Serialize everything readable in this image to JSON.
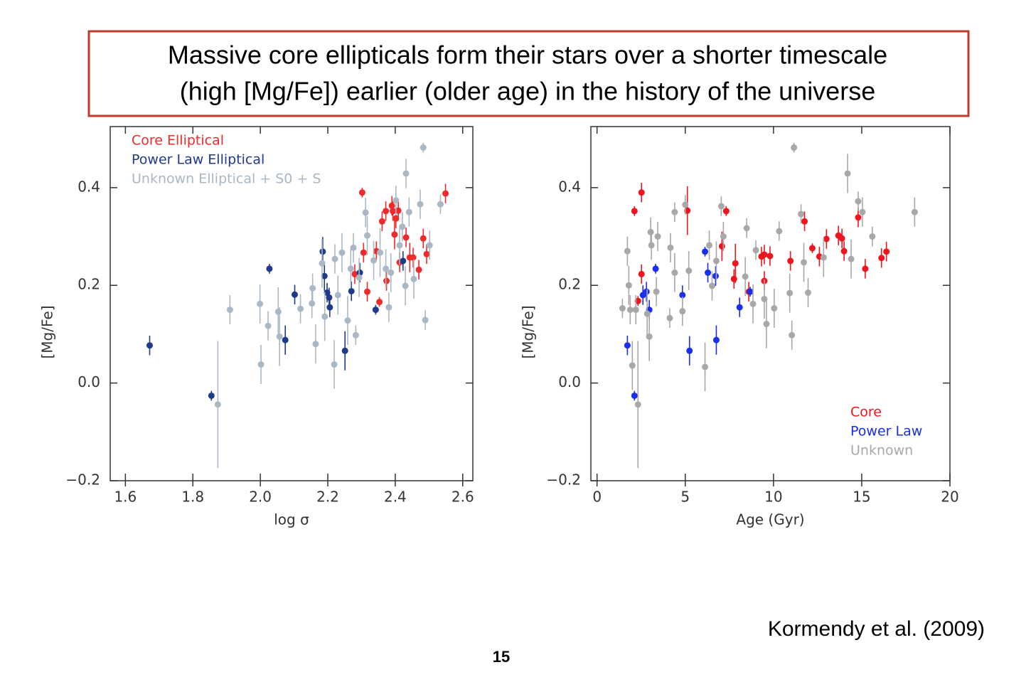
{
  "title_lines": [
    "Massive core ellipticals form their stars over a shorter timescale",
    "(high [Mg/Fe]) earlier (older age) in the history of the universe"
  ],
  "citation": "Kormendy et al. (2009)",
  "page_number": 15,
  "chart_data": [
    {
      "type": "scatter",
      "xlabel": "log σ",
      "ylabel": "[Mg/Fe]",
      "xlim": [
        1.555,
        2.63
      ],
      "ylim": [
        -0.2,
        0.525
      ],
      "xticks": [
        1.6,
        1.8,
        {
          "value": 2,
          "label": "2.0"
        },
        2.2,
        2.4,
        2.6
      ],
      "yticks": [
        {
          "value": -0.2,
          "label": "−0.2"
        },
        {
          "value": 0,
          "label": "0.0"
        },
        0.2,
        0.4
      ],
      "legend": "upper left",
      "series": [
        {
          "name": "Core Elliptical",
          "color": "#f02a2a",
          "x": [
            2.302,
            2.317,
            2.306,
            2.344,
            2.28,
            2.353,
            2.361,
            2.372,
            2.374,
            2.393,
            2.398,
            2.402,
            2.409,
            2.413,
            2.432,
            2.443,
            2.453,
            2.47,
            2.483,
            2.493,
            2.549,
            2.39
          ],
          "values": [
            0.39,
            0.187,
            0.267,
            0.27,
            0.223,
            0.166,
            0.331,
            0.352,
            0.209,
            0.352,
            0.304,
            0.337,
            0.353,
            0.247,
            0.298,
            0.257,
            0.257,
            0.232,
            0.296,
            0.264,
            0.388,
            0.363
          ],
          "yerr": [
            0.01,
            0.02,
            0.02,
            0.02,
            0.02,
            0.01,
            0.02,
            0.02,
            0.02,
            0.02,
            0.03,
            0.02,
            0.02,
            0.02,
            0.02,
            0.03,
            0.02,
            0.02,
            0.02,
            0.02,
            0.02,
            0.02
          ]
        },
        {
          "name": "Power Law Elliptical",
          "color": "#1f3a8a",
          "x": [
            1.672,
            1.855,
            2.027,
            2.074,
            2.102,
            2.185,
            2.19,
            2.198,
            2.204,
            2.206,
            2.251,
            2.27,
            2.295,
            2.342,
            2.423
          ],
          "values": [
            0.077,
            -0.026,
            0.234,
            0.088,
            0.181,
            0.269,
            0.219,
            0.185,
            0.175,
            0.155,
            0.066,
            0.188,
            0.226,
            0.15,
            0.25
          ],
          "yerr": [
            0.02,
            0.01,
            0.01,
            0.03,
            0.02,
            0.03,
            0.03,
            0.02,
            0.02,
            0.02,
            0.04,
            0.02,
            0.02,
            0.01,
            0.02
          ]
        },
        {
          "name": "Unknown Elliptical + S0 + S",
          "color": "#a9b8c4",
          "x": [
            1.874,
            1.91,
            1.999,
            2.002,
            2.023,
            2.053,
            2.057,
            2.119,
            2.153,
            2.155,
            2.164,
            2.183,
            2.191,
            2.219,
            2.221,
            2.23,
            2.242,
            2.259,
            2.268,
            2.276,
            2.283,
            2.293,
            2.312,
            2.317,
            2.336,
            2.355,
            2.372,
            2.381,
            2.387,
            2.402,
            2.413,
            2.421,
            2.43,
            2.432,
            2.441,
            2.455,
            2.474,
            2.483,
            2.489,
            2.502,
            2.534
          ],
          "values": [
            -0.044,
            0.15,
            0.162,
            0.038,
            0.117,
            0.146,
            0.095,
            0.152,
            0.163,
            0.194,
            0.08,
            0.245,
            0.136,
            0.038,
            0.254,
            0.18,
            0.267,
            0.128,
            0.234,
            0.277,
            0.098,
            0.216,
            0.349,
            0.302,
            0.251,
            0.267,
            0.234,
            0.155,
            0.226,
            0.374,
            0.282,
            0.32,
            0.199,
            0.429,
            0.35,
            0.213,
            0.366,
            0.482,
            0.129,
            0.282,
            0.366
          ],
          "yerr": [
            0.13,
            0.03,
            0.04,
            0.04,
            0.03,
            0.05,
            0.06,
            0.03,
            0.03,
            0.03,
            0.04,
            0.05,
            0.05,
            0.05,
            0.03,
            0.04,
            0.04,
            0.05,
            0.04,
            0.03,
            0.02,
            0.04,
            0.03,
            0.04,
            0.04,
            0.05,
            0.04,
            0.03,
            0.04,
            0.03,
            0.04,
            0.03,
            0.04,
            0.03,
            0.03,
            0.04,
            0.03,
            0.01,
            0.02,
            0.03,
            0.02
          ]
        }
      ]
    },
    {
      "type": "scatter",
      "xlabel": "Age  (Gyr)",
      "ylabel": "[Mg/Fe]",
      "xlim": [
        -0.35,
        20
      ],
      "ylim": [
        -0.2,
        0.525
      ],
      "xticks": [
        0,
        5,
        10,
        15,
        20
      ],
      "yticks": [
        {
          "value": -0.2,
          "label": "−0.2"
        },
        {
          "value": 0,
          "label": "0.0"
        },
        0.2,
        0.4
      ],
      "legend": "lower right",
      "series": [
        {
          "name": "Core",
          "color": "#f0141e",
          "x": [
            2.12,
            2.52,
            2.52,
            2.32,
            5.12,
            7.08,
            7.32,
            7.76,
            7.84,
            8.6,
            9.32,
            9.48,
            9.48,
            9.8,
            10.96,
            11.76,
            12.2,
            12.6,
            13.0,
            13.68,
            13.88,
            14.0,
            14.8,
            15.2,
            16.12,
            16.4
          ],
          "values": [
            0.352,
            0.39,
            0.223,
            0.168,
            0.353,
            0.28,
            0.352,
            0.213,
            0.245,
            0.187,
            0.259,
            0.209,
            0.263,
            0.26,
            0.25,
            0.331,
            0.276,
            0.259,
            0.295,
            0.302,
            0.296,
            0.27,
            0.339,
            0.234,
            0.256,
            0.269
          ],
          "yerr": [
            0.01,
            0.02,
            0.02,
            0.01,
            0.05,
            0.03,
            0.01,
            0.02,
            0.04,
            0.02,
            0.02,
            0.02,
            0.02,
            0.02,
            0.02,
            0.02,
            0.01,
            0.02,
            0.02,
            0.02,
            0.02,
            0.02,
            0.02,
            0.02,
            0.02,
            0.02
          ]
        },
        {
          "name": "Power Law",
          "color": "#1a2ef0",
          "x": [
            1.72,
            2.12,
            2.6,
            2.8,
            2.96,
            3.32,
            4.84,
            5.24,
            6.12,
            6.28,
            6.72,
            6.76,
            8.08,
            8.68
          ],
          "values": [
            0.077,
            -0.026,
            0.18,
            0.187,
            0.15,
            0.234,
            0.18,
            0.066,
            0.269,
            0.226,
            0.219,
            0.088,
            0.155,
            0.187
          ],
          "yerr": [
            0.02,
            0.01,
            0.02,
            0.02,
            0.02,
            0.01,
            0.02,
            0.03,
            0.01,
            0.02,
            0.02,
            0.03,
            0.02,
            0.01
          ]
        },
        {
          "name": "Unknown",
          "color": "#a8a8a8",
          "x": [
            1.44,
            1.72,
            1.8,
            1.88,
            2.0,
            2.32,
            2.2,
            2.84,
            2.96,
            3.04,
            3.08,
            3.36,
            3.44,
            4.12,
            4.16,
            4.4,
            4.4,
            4.84,
            5.0,
            5.2,
            6.12,
            6.36,
            6.52,
            6.76,
            7.04,
            7.16,
            8.48,
            8.4,
            8.84,
            9.0,
            9.48,
            9.6,
            10.04,
            10.32,
            10.92,
            11.04,
            11.16,
            11.56,
            11.72,
            11.96,
            12.84,
            14.2,
            14.4,
            14.8,
            15.04,
            15.6,
            18.0
          ],
          "values": [
            0.153,
            0.27,
            0.2,
            0.15,
            0.036,
            -0.044,
            0.15,
            0.142,
            0.095,
            0.309,
            0.282,
            0.187,
            0.3,
            0.133,
            0.277,
            0.35,
            0.226,
            0.147,
            0.365,
            0.23,
            0.033,
            0.282,
            0.199,
            0.25,
            0.362,
            0.3,
            0.317,
            0.218,
            0.162,
            0.272,
            0.172,
            0.121,
            0.153,
            0.311,
            0.184,
            0.098,
            0.482,
            0.346,
            0.247,
            0.185,
            0.257,
            0.429,
            0.254,
            0.372,
            0.35,
            0.3,
            0.35
          ],
          "yerr": [
            0.02,
            0.03,
            0.04,
            0.03,
            0.05,
            0.13,
            0.03,
            0.05,
            0.05,
            0.03,
            0.03,
            0.03,
            0.03,
            0.02,
            0.03,
            0.02,
            0.04,
            0.03,
            0.02,
            0.04,
            0.05,
            0.03,
            0.03,
            0.04,
            0.02,
            0.03,
            0.02,
            0.04,
            0.04,
            0.02,
            0.04,
            0.05,
            0.04,
            0.02,
            0.04,
            0.03,
            0.01,
            0.02,
            0.04,
            0.03,
            0.04,
            0.04,
            0.04,
            0.02,
            0.03,
            0.02,
            0.03
          ]
        }
      ]
    }
  ]
}
